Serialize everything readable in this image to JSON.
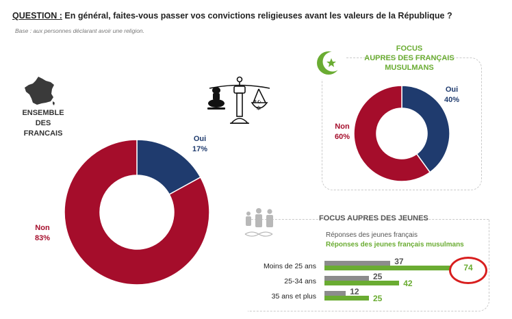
{
  "question": {
    "label": "QUESTION :",
    "text": " En général, faites-vous passer vos convictions religieuses avant les valeurs de la République ?"
  },
  "base_note": "Base : aux personnes déclarant avoir une religion.",
  "ensemble": {
    "line1": "ENSEMBLE DES",
    "line2": "FRANCAIS"
  },
  "muslim_focus": {
    "line1": "FOCUS",
    "line2": "AUPRES DES FRANÇAIS",
    "line3": "MUSULMANS"
  },
  "youth_focus": {
    "title": "FOCUS AUPRES DES JEUNES",
    "legend_all": "Réponses des jeunes français",
    "legend_muslim": "Réponses des jeunes français musulmans"
  },
  "colors": {
    "oui": "#1f3b6e",
    "non": "#a50d2b",
    "grey": "#8c8c8c",
    "green": "#6aac32",
    "highlight": "#d81e1e"
  },
  "icons": [
    "france-map-icon",
    "scales-icon",
    "crescent-star-icon",
    "people-dna-icon"
  ],
  "chart_data": [
    {
      "type": "pie",
      "title": "ENSEMBLE DES FRANCAIS",
      "donut": true,
      "slices": [
        {
          "label": "Oui",
          "value": 17,
          "display": "17%"
        },
        {
          "label": "Non",
          "value": 83,
          "display": "83%"
        }
      ]
    },
    {
      "type": "pie",
      "title": "FOCUS AUPRES DES FRANÇAIS MUSULMANS",
      "donut": true,
      "slices": [
        {
          "label": "Oui",
          "value": 40,
          "display": "40%"
        },
        {
          "label": "Non",
          "value": 60,
          "display": "60%"
        }
      ]
    },
    {
      "type": "bar",
      "orientation": "horizontal",
      "title": "FOCUS AUPRES DES JEUNES",
      "categories": [
        "Moins de 25 ans",
        "25-34 ans",
        "35 ans et plus"
      ],
      "series": [
        {
          "name": "Réponses des jeunes français",
          "values": [
            37,
            25,
            12
          ],
          "labels": [
            "37",
            "25",
            "12"
          ]
        },
        {
          "name": "Réponses des jeunes français musulmans",
          "values": [
            74,
            42,
            25
          ],
          "labels": [
            "74",
            "42",
            "25"
          ]
        }
      ],
      "highlight": "74",
      "xlim": [
        0,
        80
      ]
    }
  ]
}
